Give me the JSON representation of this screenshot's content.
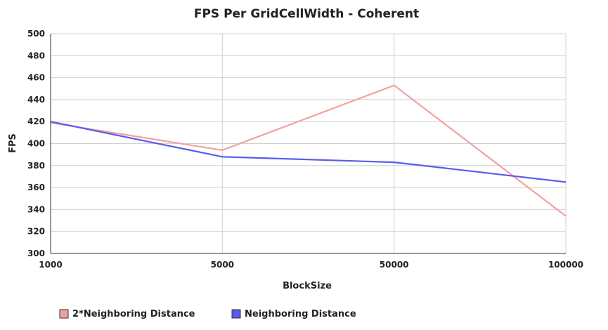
{
  "chart_data": {
    "type": "line",
    "title": "FPS Per GridCellWidth - Coherent",
    "xlabel": "BlockSize",
    "ylabel": "FPS",
    "categories": [
      "1000",
      "5000",
      "50000",
      "100000"
    ],
    "ylim": [
      300,
      500
    ],
    "yticks": [
      300,
      320,
      340,
      360,
      380,
      400,
      420,
      440,
      460,
      480,
      500
    ],
    "grid": true,
    "legend_position": "bottom-left",
    "series": [
      {
        "name": "2*Neighboring Distance",
        "values": [
          419,
          394,
          453,
          334
        ],
        "color": "#f4a0a0"
      },
      {
        "name": "Neighboring Distance",
        "values": [
          420,
          388,
          383,
          365
        ],
        "color": "#5a5af0"
      }
    ]
  }
}
